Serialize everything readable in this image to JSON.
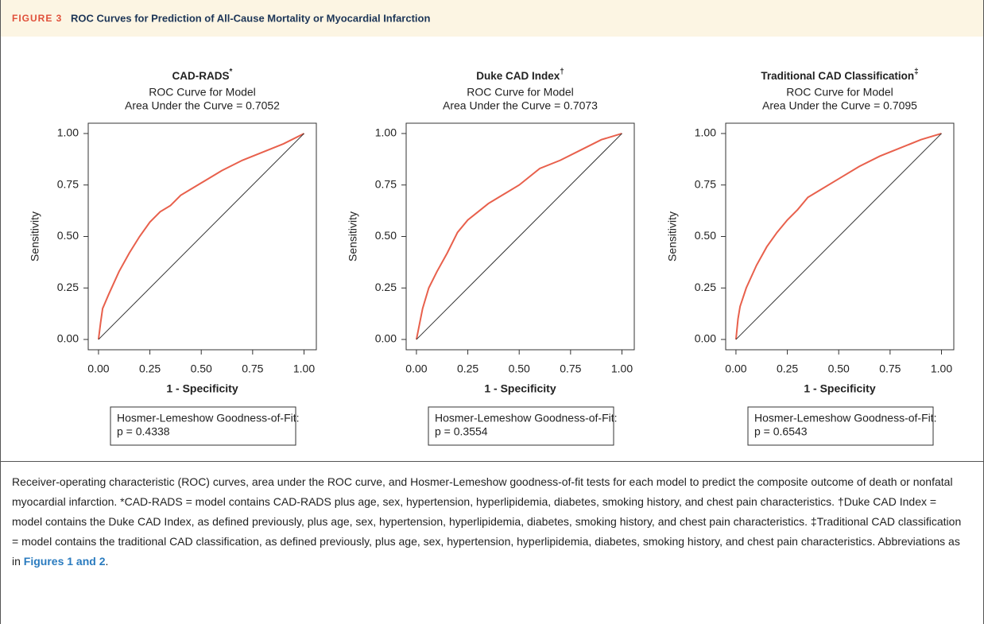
{
  "figure_label": "FIGURE 3",
  "figure_title": "ROC Curves for Prediction of All-Cause Mortality or Myocardial Infarction",
  "chart_data": [
    {
      "type": "line",
      "title": "CAD-RADS",
      "title_mark": "*",
      "subtitle": [
        "ROC Curve for Model",
        "Area Under the Curve = 0.7052"
      ],
      "x_label": "1 - Specificity",
      "y_label": "Sensitivity",
      "xlim": [
        -0.05,
        1.06
      ],
      "ylim": [
        -0.05,
        1.05
      ],
      "xticks": [
        {
          "value": 0,
          "label": "0.00"
        },
        {
          "value": 0.25,
          "label": "0.25"
        },
        {
          "value": 0.5,
          "label": "0.50"
        },
        {
          "value": 0.75,
          "label": "0.75"
        },
        {
          "value": 1,
          "label": "1.00"
        }
      ],
      "yticks": [
        {
          "value": 0,
          "label": "0.00"
        },
        {
          "value": 0.25,
          "label": "0.25"
        },
        {
          "value": 0.5,
          "label": "0.50"
        },
        {
          "value": 0.75,
          "label": "0.75"
        },
        {
          "value": 1,
          "label": "1.00"
        }
      ],
      "series": [
        {
          "color": "#e8604c",
          "x": [
            0,
            0.01,
            0.02,
            0.05,
            0.1,
            0.15,
            0.2,
            0.25,
            0.3,
            0.35,
            0.4,
            0.45,
            0.5,
            0.6,
            0.7,
            0.8,
            0.9,
            1
          ],
          "y": [
            0,
            0.08,
            0.15,
            0.22,
            0.33,
            0.42,
            0.5,
            0.57,
            0.62,
            0.65,
            0.7,
            0.73,
            0.76,
            0.82,
            0.87,
            0.91,
            0.95,
            1
          ]
        },
        {
          "color": "#333333",
          "x": [
            0,
            1
          ],
          "y": [
            0,
            1
          ]
        }
      ],
      "annotation": [
        "Hosmer-Lemeshow Goodness-of-Fit:",
        "p = 0.4338"
      ]
    },
    {
      "type": "line",
      "title": "Duke CAD Index",
      "title_mark": "†",
      "subtitle": [
        "ROC Curve for Model",
        "Area Under the Curve = 0.7073"
      ],
      "x_label": "1 - Specificity",
      "y_label": "Sensitivity",
      "xlim": [
        -0.05,
        1.06
      ],
      "ylim": [
        -0.05,
        1.05
      ],
      "xticks": [
        {
          "value": 0,
          "label": "0.00"
        },
        {
          "value": 0.25,
          "label": "0.25"
        },
        {
          "value": 0.5,
          "label": "0.50"
        },
        {
          "value": 0.75,
          "label": "0.75"
        },
        {
          "value": 1,
          "label": "1.00"
        }
      ],
      "yticks": [
        {
          "value": 0,
          "label": "0.00"
        },
        {
          "value": 0.25,
          "label": "0.25"
        },
        {
          "value": 0.5,
          "label": "0.50"
        },
        {
          "value": 0.75,
          "label": "0.75"
        },
        {
          "value": 1,
          "label": "1.00"
        }
      ],
      "series": [
        {
          "color": "#e8604c",
          "x": [
            0,
            0.01,
            0.03,
            0.06,
            0.1,
            0.15,
            0.2,
            0.25,
            0.3,
            0.35,
            0.4,
            0.5,
            0.6,
            0.7,
            0.8,
            0.9,
            1
          ],
          "y": [
            0,
            0.05,
            0.15,
            0.25,
            0.33,
            0.42,
            0.52,
            0.58,
            0.62,
            0.66,
            0.69,
            0.75,
            0.83,
            0.87,
            0.92,
            0.97,
            1
          ]
        },
        {
          "color": "#333333",
          "x": [
            0,
            1
          ],
          "y": [
            0,
            1
          ]
        }
      ],
      "annotation": [
        "Hosmer-Lemeshow Goodness-of-Fit:",
        "p = 0.3554"
      ]
    },
    {
      "type": "line",
      "title": "Traditional CAD Classification",
      "title_mark": "‡",
      "subtitle": [
        "ROC Curve for Model",
        "Area Under the Curve = 0.7095"
      ],
      "x_label": "1 - Specificity",
      "y_label": "Sensitivity",
      "xlim": [
        -0.05,
        1.06
      ],
      "ylim": [
        -0.05,
        1.05
      ],
      "xticks": [
        {
          "value": 0,
          "label": "0.00"
        },
        {
          "value": 0.25,
          "label": "0.25"
        },
        {
          "value": 0.5,
          "label": "0.50"
        },
        {
          "value": 0.75,
          "label": "0.75"
        },
        {
          "value": 1,
          "label": "1.00"
        }
      ],
      "yticks": [
        {
          "value": 0,
          "label": "0.00"
        },
        {
          "value": 0.25,
          "label": "0.25"
        },
        {
          "value": 0.5,
          "label": "0.50"
        },
        {
          "value": 0.75,
          "label": "0.75"
        },
        {
          "value": 1,
          "label": "1.00"
        }
      ],
      "series": [
        {
          "color": "#e8604c",
          "x": [
            0,
            0.01,
            0.02,
            0.05,
            0.1,
            0.15,
            0.2,
            0.25,
            0.3,
            0.35,
            0.4,
            0.5,
            0.6,
            0.7,
            0.8,
            0.9,
            1
          ],
          "y": [
            0,
            0.1,
            0.16,
            0.25,
            0.36,
            0.45,
            0.52,
            0.58,
            0.63,
            0.69,
            0.72,
            0.78,
            0.84,
            0.89,
            0.93,
            0.97,
            1
          ]
        },
        {
          "color": "#333333",
          "x": [
            0,
            1
          ],
          "y": [
            0,
            1
          ]
        }
      ],
      "annotation": [
        "Hosmer-Lemeshow Goodness-of-Fit:",
        "p = 0.6543"
      ]
    }
  ],
  "caption": {
    "text": "Receiver-operating characteristic (ROC) curves, area under the ROC curve, and Hosmer-Lemeshow goodness-of-fit tests for each model to predict the composite outcome of death or nonfatal myocardial infarction. *CAD-RADS = model contains CAD-RADS plus age, sex, hypertension, hyperlipidemia, diabetes, smoking history, and chest pain characteristics. †Duke CAD Index = model contains the Duke CAD Index, as defined previously, plus age, sex, hypertension, hyperlipidemia, diabetes, smoking history, and chest pain characteristics. ‡Traditional CAD classification = model contains the traditional CAD classification, as defined previously, plus age, sex, hypertension, hyperlipidemia, diabetes, smoking history, and chest pain characteristics. Abbreviations as in ",
    "link": "Figures 1 and 2",
    "end": "."
  }
}
